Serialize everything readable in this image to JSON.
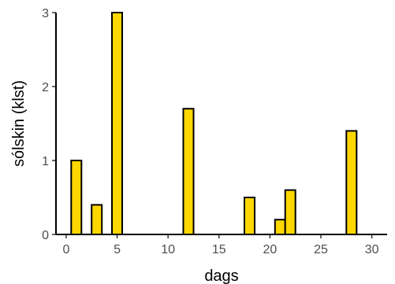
{
  "chart_data": {
    "type": "bar",
    "xlabel": "dags",
    "ylabel": "sólskin (klst)",
    "xlim": [
      -1,
      31.5
    ],
    "ylim": [
      0,
      3
    ],
    "xticks": [
      0,
      5,
      10,
      15,
      20,
      25,
      30
    ],
    "yticks": [
      0,
      1,
      2,
      3
    ],
    "grid": false,
    "x": [
      1,
      3,
      5,
      12,
      18,
      21,
      22,
      28
    ],
    "values": [
      1.0,
      0.4,
      3.0,
      1.7,
      0.5,
      0.2,
      0.6,
      1.4
    ],
    "bar_fill": "#FFD700",
    "bar_stroke": "#000000"
  }
}
